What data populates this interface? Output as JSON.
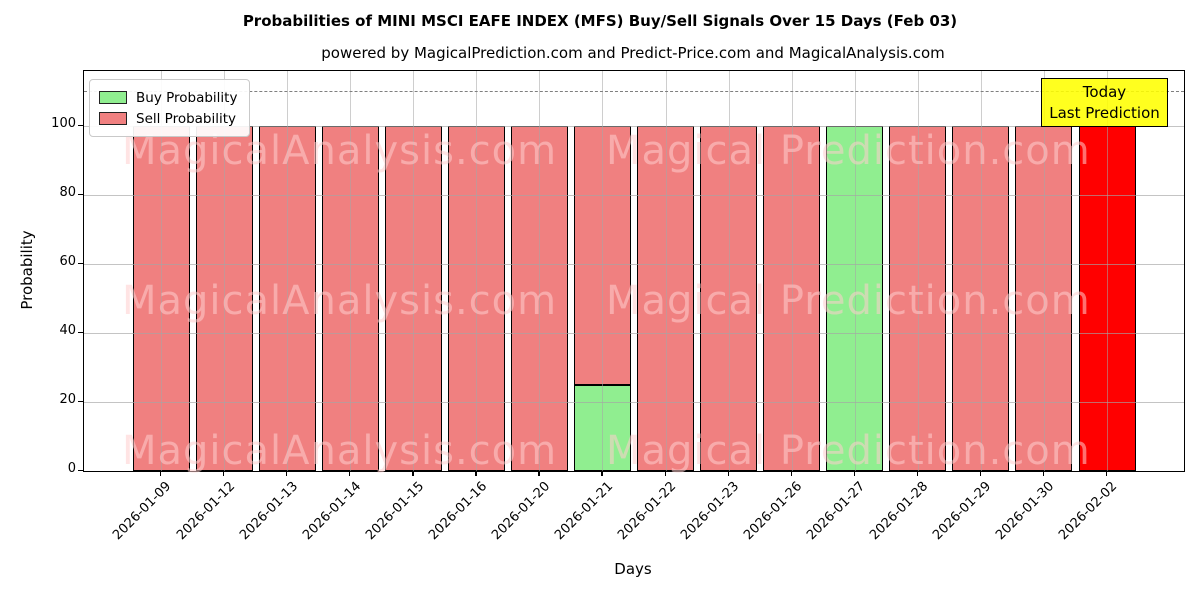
{
  "title": "Probabilities of MINI MSCI EAFE INDEX (MFS) Buy/Sell Signals Over 15 Days (Feb 03)",
  "subtitle": "powered by MagicalPrediction.com and Predict-Price.com and MagicalAnalysis.com",
  "legend": {
    "buy_label": "Buy Probability",
    "sell_label": "Sell Probability"
  },
  "annotation": {
    "line1": "Today",
    "line2": "Last Prediction"
  },
  "watermarks": {
    "left_text": "MagicalAnalysis.com",
    "right_text": "Magical Prediction.com"
  },
  "colors": {
    "buy": "#90ee90",
    "sell": "#f08080",
    "today_sell": "#ff0000",
    "annotation_bg": "#ffff00",
    "grid": "#a5a5a5",
    "dashed_line": "#7f7f7f",
    "bar_edge": "#000000"
  },
  "chart_data": {
    "type": "bar",
    "stacked": true,
    "title": "Probabilities of MINI MSCI EAFE INDEX (MFS) Buy/Sell Signals Over 15 Days (Feb 03)",
    "xlabel": "Days",
    "ylabel": "Probability",
    "categories": [
      "2026-01-09",
      "2026-01-12",
      "2026-01-13",
      "2026-01-14",
      "2026-01-15",
      "2026-01-16",
      "2026-01-20",
      "2026-01-21",
      "2026-01-22",
      "2026-01-23",
      "2026-01-26",
      "2026-01-27",
      "2026-01-28",
      "2026-01-29",
      "2026-01-30",
      "2026-02-02"
    ],
    "series": [
      {
        "name": "Buy Probability",
        "color": "#90ee90",
        "values": [
          0,
          0,
          0,
          0,
          0,
          0,
          0,
          25,
          0,
          0,
          0,
          100,
          0,
          0,
          0,
          0
        ]
      },
      {
        "name": "Sell Probability",
        "color": "#f08080",
        "values": [
          100,
          100,
          100,
          100,
          100,
          100,
          100,
          75,
          100,
          100,
          100,
          0,
          100,
          100,
          100,
          100
        ]
      }
    ],
    "yticks": [
      0,
      20,
      40,
      60,
      80,
      100
    ],
    "ylim": [
      0,
      115.8
    ],
    "dashed_line_y": 110,
    "today_index": 15,
    "grid": true,
    "legend_position": "upper left"
  }
}
